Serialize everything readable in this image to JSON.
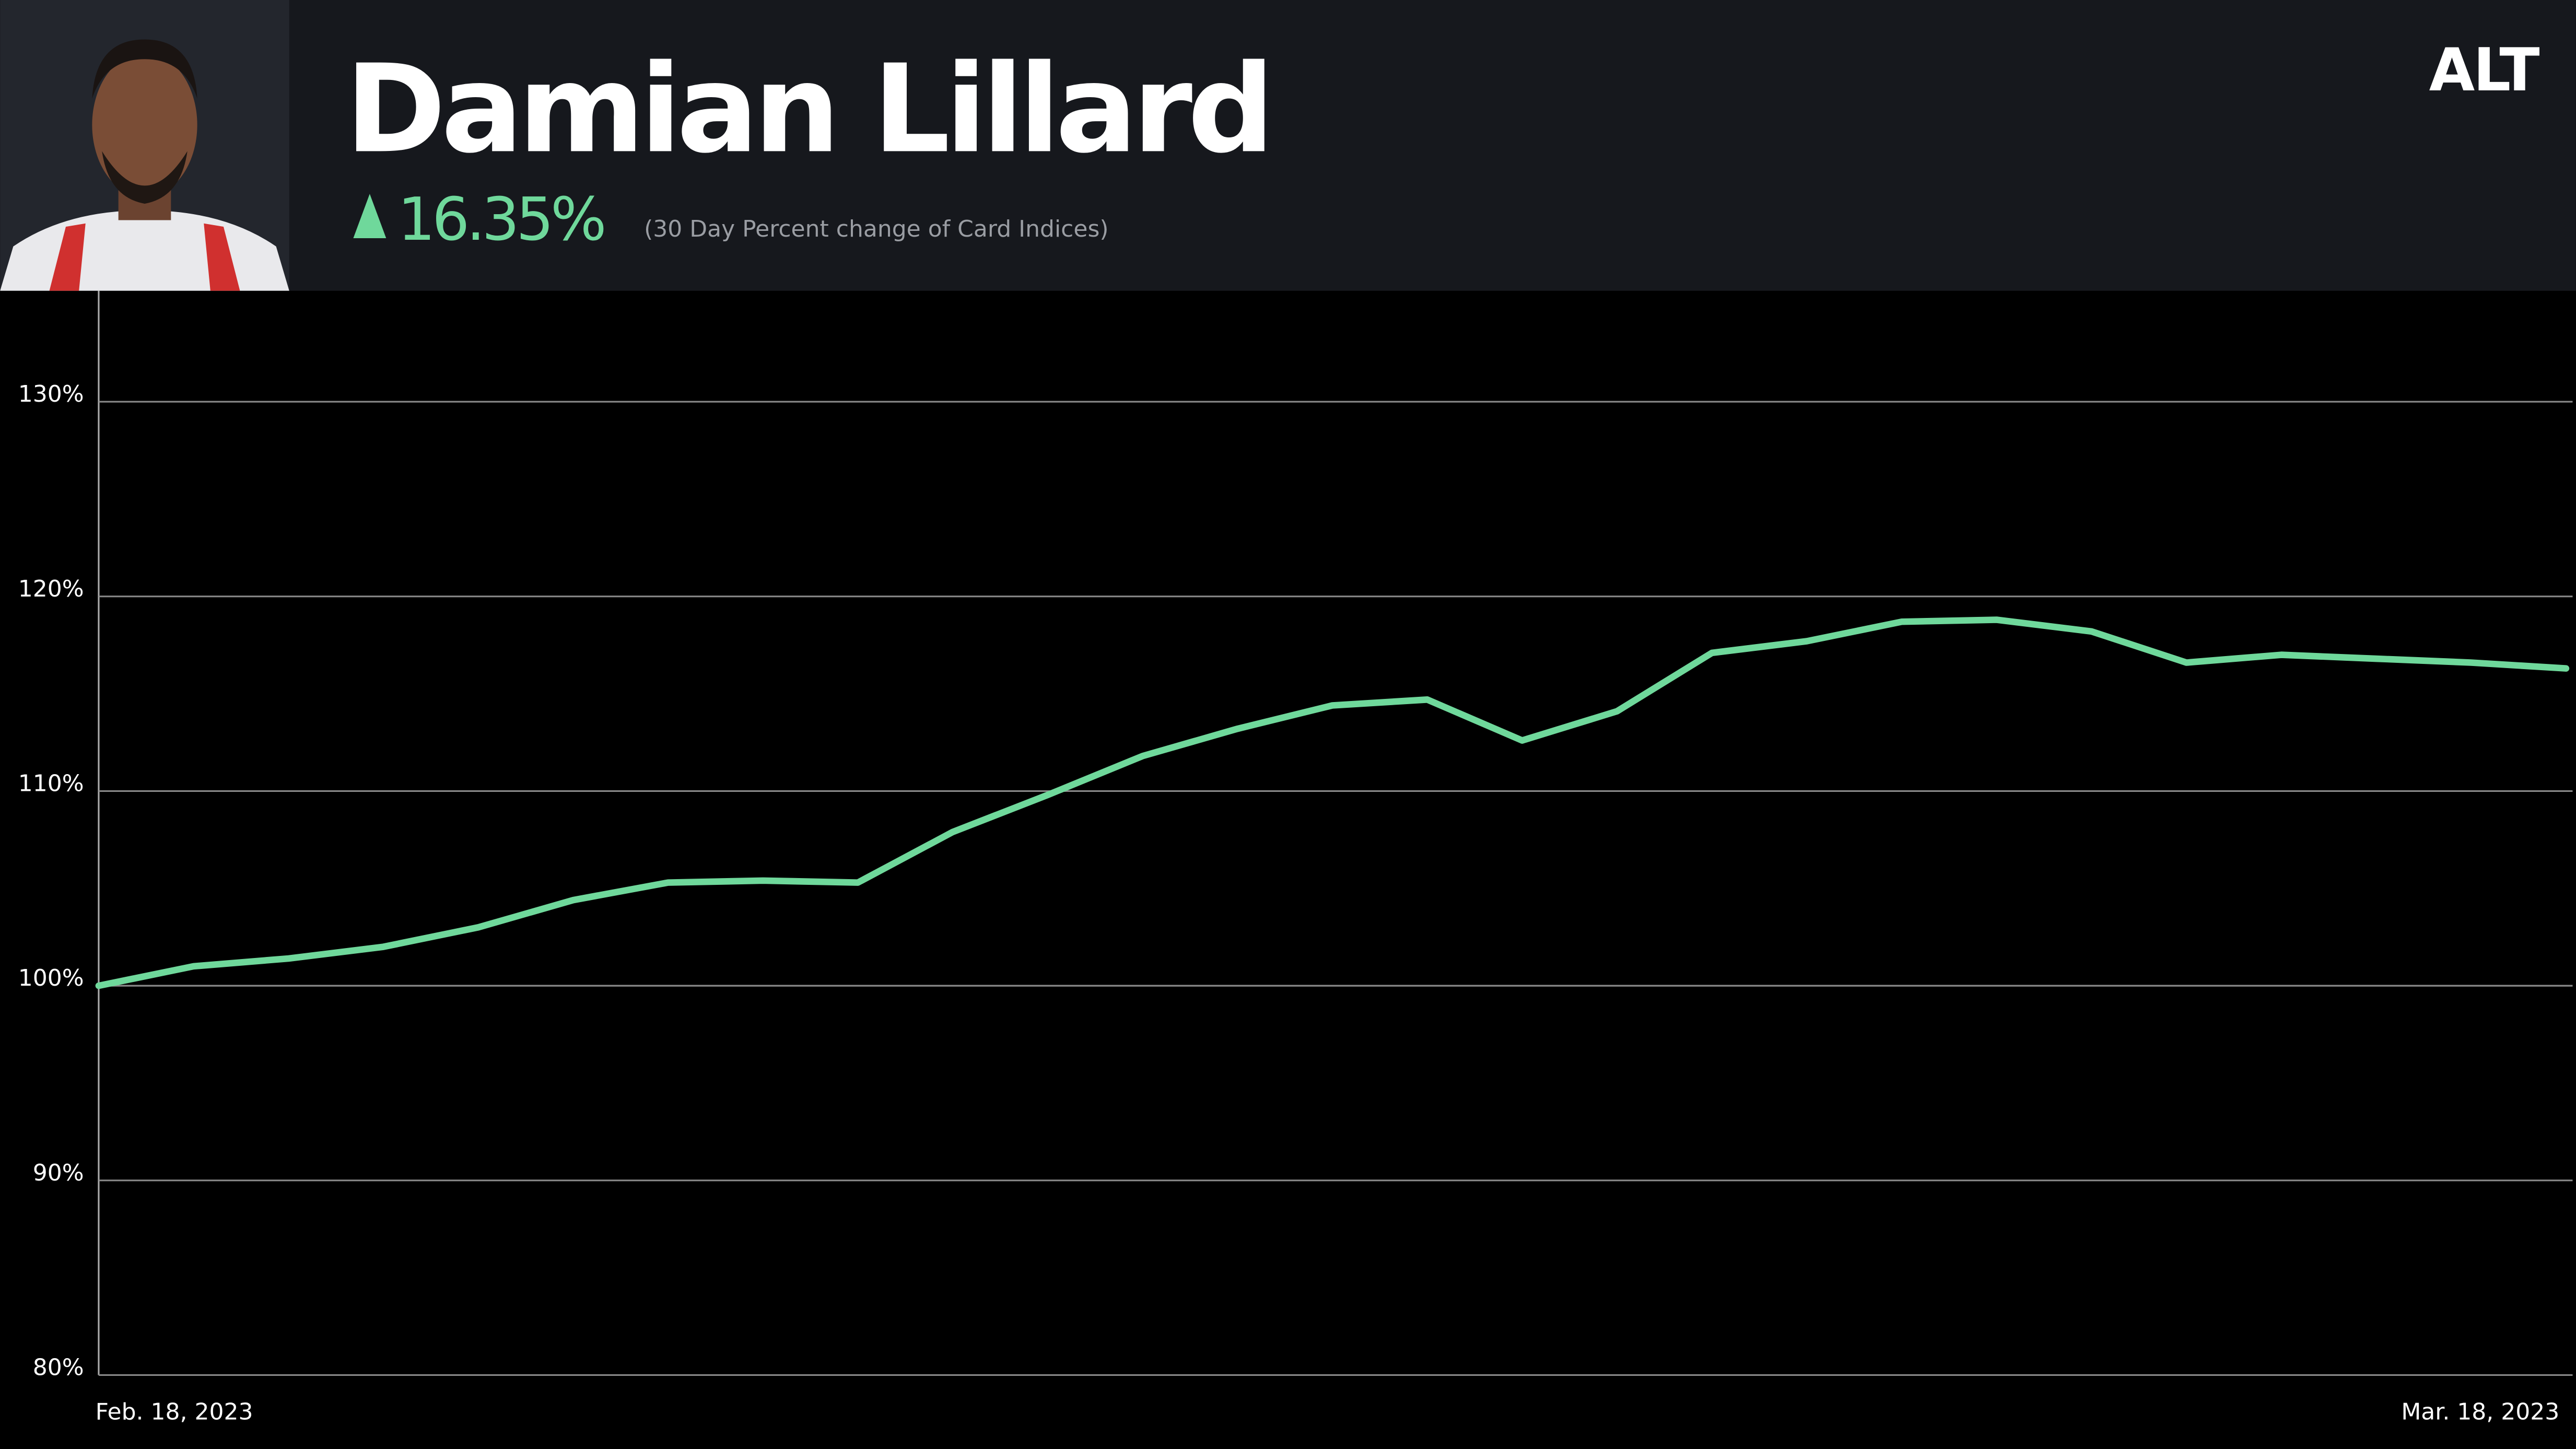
{
  "header": {
    "title": "Damian Lillard",
    "change": "16.35%",
    "subtitle": "(30 Day Percent change of Card Indices)",
    "logo": "ALT"
  },
  "chart_data": {
    "type": "line",
    "x": [
      "Feb. 18, 2023",
      null,
      null,
      null,
      null,
      null,
      null,
      null,
      null,
      null,
      null,
      null,
      null,
      null,
      null,
      null,
      null,
      null,
      null,
      null,
      null,
      null,
      null,
      null,
      null,
      null,
      "Mar. 18, 2023"
    ],
    "values": [
      100,
      101.0,
      101.4,
      102.0,
      103.0,
      104.4,
      105.3,
      105.4,
      105.3,
      107.9,
      109.8,
      111.8,
      113.2,
      114.4,
      114.7,
      112.6,
      114.1,
      117.1,
      117.7,
      118.7,
      118.8,
      118.2,
      116.6,
      117.0,
      116.8,
      116.6,
      116.3
    ],
    "color": "#6fd89b",
    "ylim": [
      80,
      135.7
    ],
    "yticks": [
      {
        "value": 80,
        "label": "80%"
      },
      {
        "value": 90,
        "label": "90%"
      },
      {
        "value": 100,
        "label": "100%"
      },
      {
        "value": 110,
        "label": "110%"
      },
      {
        "value": 120,
        "label": "120%"
      },
      {
        "value": 130,
        "label": "130%"
      }
    ],
    "grid": true
  }
}
